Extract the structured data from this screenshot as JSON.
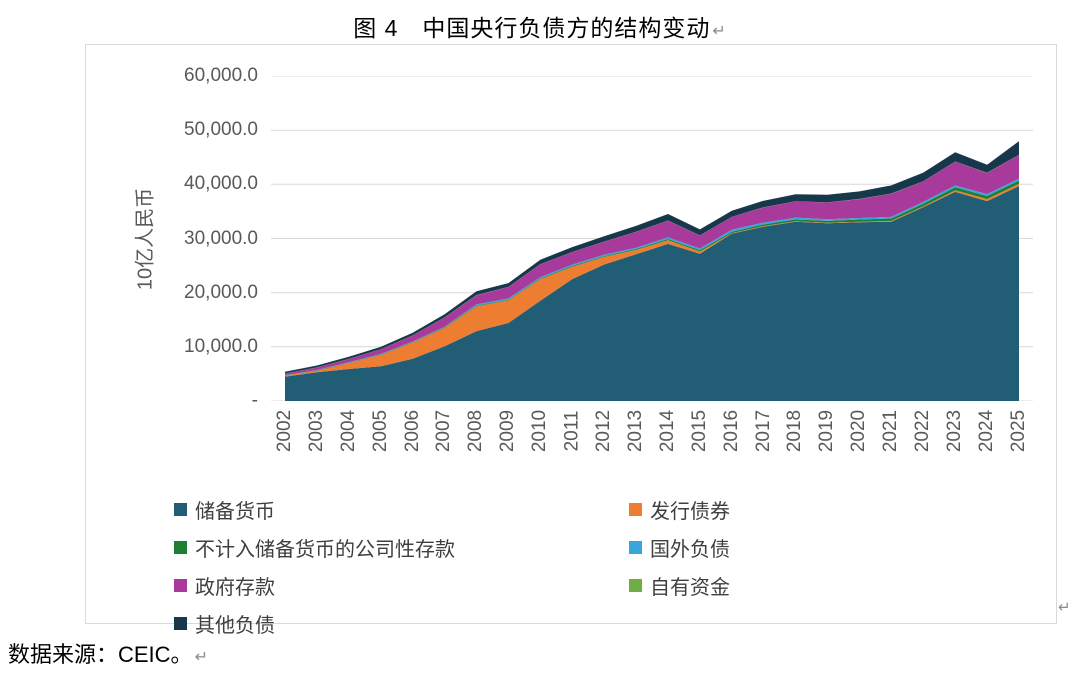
{
  "title": {
    "text": "图 4　中国央行负债方的结构变动",
    "return_mark": "↵"
  },
  "source_note": {
    "text": "数据来源：CEIC。",
    "return_mark": "↵"
  },
  "box_return_mark": "↵",
  "chart_data": {
    "type": "area",
    "stacked": true,
    "title": "图 4　中国央行负债方的结构变动",
    "xlabel": "",
    "ylabel": "10亿人民币",
    "ylim": [
      0,
      60000
    ],
    "y_tick_interval": 10000,
    "y_tick_labels": [
      "-",
      "10,000.0",
      "20,000.0",
      "30,000.0",
      "40,000.0",
      "50,000.0",
      "60,000.0"
    ],
    "grid": true,
    "gridline_color": "#d9d9d9",
    "legend_position": "bottom",
    "categories": [
      2002,
      2003,
      2004,
      2005,
      2006,
      2007,
      2008,
      2009,
      2010,
      2011,
      2012,
      2013,
      2014,
      2015,
      2016,
      2017,
      2018,
      2019,
      2020,
      2021,
      2022,
      2023,
      2024,
      2025
    ],
    "series": [
      {
        "name": "储备货币",
        "color": "#215E75",
        "values": [
          4500,
          5300,
          5900,
          6400,
          7800,
          10100,
          12900,
          14400,
          18500,
          22500,
          25200,
          27100,
          29000,
          27200,
          30900,
          32200,
          33100,
          32800,
          33000,
          33100,
          35800,
          38600,
          36900,
          39700
        ]
      },
      {
        "name": "发行债券",
        "color": "#ED7D31",
        "values": [
          150,
          300,
          1100,
          2100,
          3000,
          3400,
          4600,
          4200,
          4000,
          2300,
          1400,
          800,
          700,
          400,
          100,
          100,
          100,
          100,
          100,
          150,
          150,
          300,
          400,
          400
        ]
      },
      {
        "name": "不计入储备货币的公司性存款",
        "color": "#1E7E34",
        "values": [
          50,
          60,
          70,
          80,
          90,
          100,
          110,
          120,
          130,
          140,
          150,
          160,
          200,
          250,
          250,
          300,
          300,
          350,
          400,
          450,
          500,
          550,
          550,
          600
        ]
      },
      {
        "name": "国外负债",
        "color": "#36A6DC",
        "values": [
          60,
          70,
          80,
          90,
          100,
          110,
          230,
          230,
          230,
          250,
          250,
          250,
          300,
          300,
          350,
          350,
          350,
          300,
          280,
          280,
          300,
          350,
          350,
          350
        ]
      },
      {
        "name": "政府存款",
        "color": "#A83A9B",
        "values": [
          300,
          450,
          600,
          850,
          1100,
          1700,
          1700,
          2100,
          2400,
          2300,
          2400,
          2900,
          3100,
          2400,
          2400,
          2800,
          3000,
          3100,
          3500,
          4300,
          3800,
          4400,
          3900,
          4400
        ]
      },
      {
        "name": "自有资金",
        "color": "#70AD47",
        "values": [
          22,
          22,
          22,
          22,
          22,
          22,
          22,
          22,
          22,
          22,
          22,
          22,
          22,
          22,
          22,
          22,
          22,
          22,
          22,
          22,
          22,
          22,
          22,
          22
        ]
      },
      {
        "name": "其他负债",
        "color": "#17384A",
        "values": [
          300,
          350,
          400,
          450,
          500,
          600,
          700,
          700,
          800,
          900,
          1000,
          1100,
          1200,
          1100,
          1100,
          1200,
          1300,
          1400,
          1400,
          1500,
          1600,
          1700,
          1500,
          2500
        ]
      }
    ]
  }
}
